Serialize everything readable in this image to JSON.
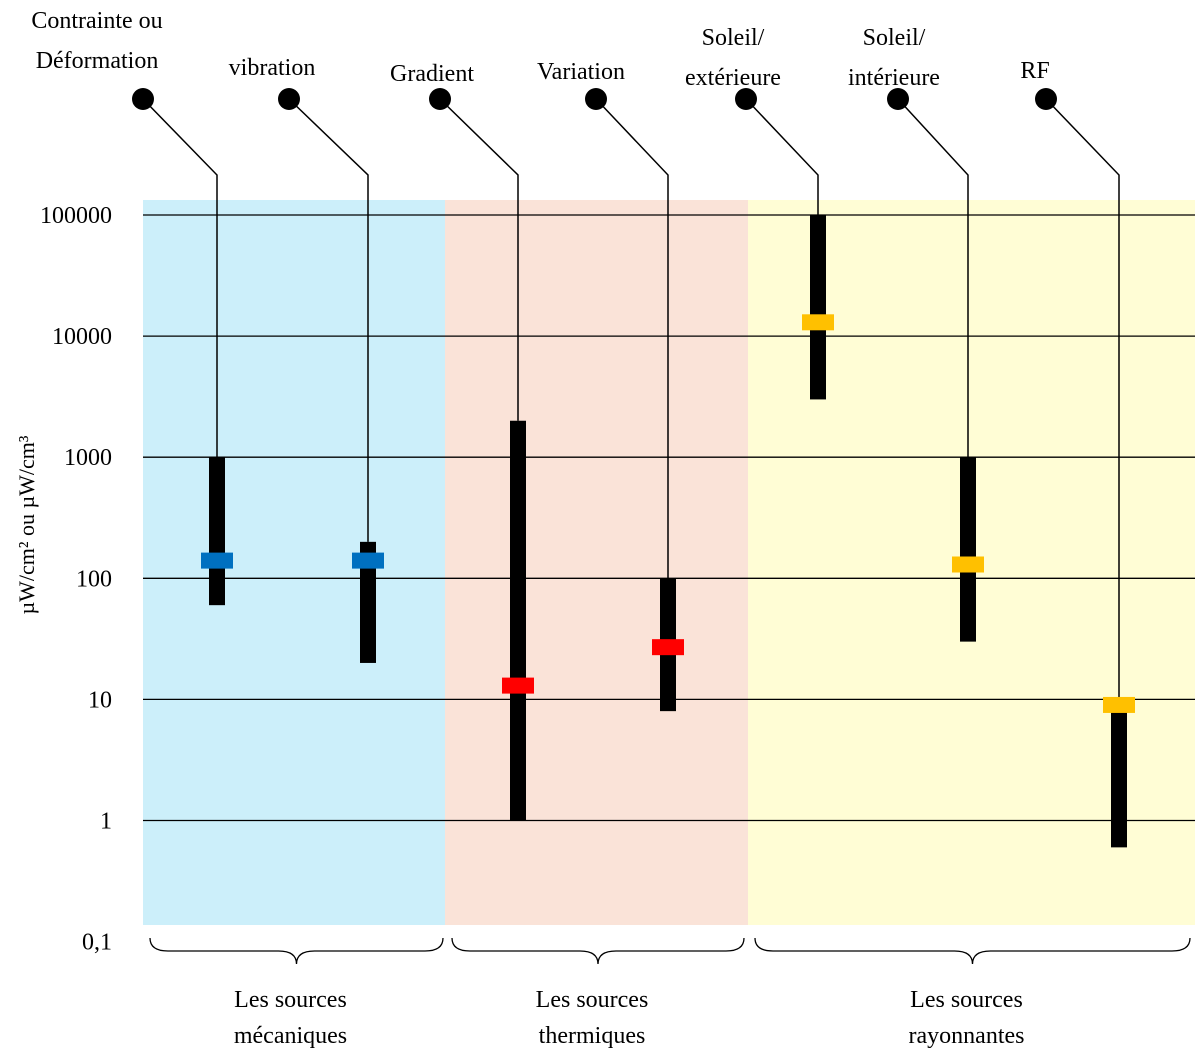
{
  "chart_data": {
    "type": "range",
    "scale": "log",
    "ylim": [
      0.1,
      100000
    ],
    "yticks": [
      "100000",
      "10000",
      "1000",
      "100",
      "10",
      "1",
      "0,1"
    ],
    "ylabel": "µW/cm² ou µW/cm³",
    "grid": true,
    "groups": [
      {
        "name": "Les sources mécaniques",
        "label_lines": [
          "Les sources",
          "mécaniques"
        ],
        "color": "#cceffa",
        "first": 0,
        "last": 1
      },
      {
        "name": "Les sources thermiques",
        "label_lines": [
          "Les sources",
          "thermiques"
        ],
        "color": "#fae3d8",
        "first": 2,
        "last": 3
      },
      {
        "name": "Les sources rayonnantes",
        "label_lines": [
          "Les sources",
          "rayonnantes"
        ],
        "color": "#fffdd5",
        "first": 4,
        "last": 6
      }
    ],
    "sources": [
      {
        "label_lines": [
          "Contrainte ou",
          "Déformation"
        ],
        "min": 60,
        "max": 1000,
        "typical": 140,
        "marker_color": "#0070c0"
      },
      {
        "label_lines": [
          "vibration"
        ],
        "min": 20,
        "max": 200,
        "typical": 140,
        "marker_color": "#0070c0"
      },
      {
        "label_lines": [
          "Gradient"
        ],
        "min": 1,
        "max": 2000,
        "typical": 13,
        "marker_color": "#ff0000"
      },
      {
        "label_lines": [
          "Variation"
        ],
        "min": 8,
        "max": 100,
        "typical": 27,
        "marker_color": "#ff0000"
      },
      {
        "label_lines": [
          "Soleil/",
          "extérieure"
        ],
        "min": 3000,
        "max": 100000,
        "typical": 13000,
        "marker_color": "#ffc000"
      },
      {
        "label_lines": [
          "Soleil/",
          "intérieure"
        ],
        "min": 30,
        "max": 1000,
        "typical": 130,
        "marker_color": "#ffc000"
      },
      {
        "label_lines": [
          "RF"
        ],
        "min": 0.6,
        "max": 8,
        "typical": 9,
        "marker_color": "#ffc000"
      }
    ]
  }
}
